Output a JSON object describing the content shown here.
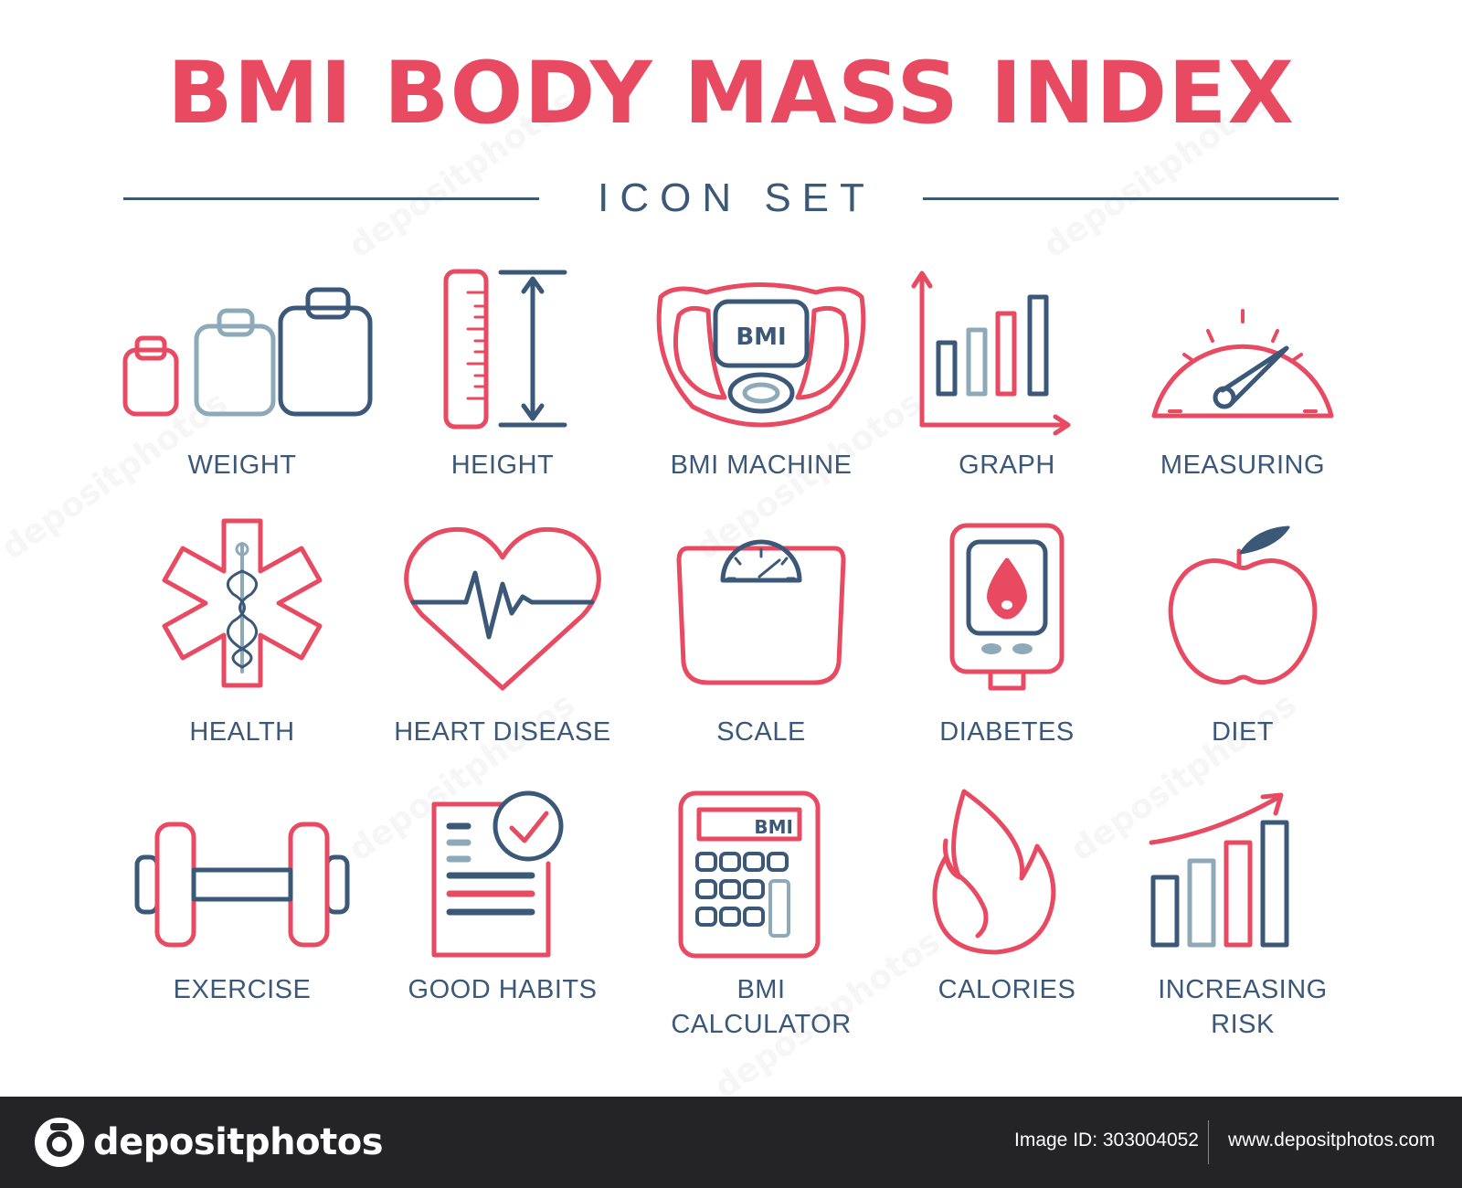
{
  "header": {
    "title": "BMI BODY MASS INDEX",
    "subtitle": "ICON SET"
  },
  "colors": {
    "accent_red": "#e84a62",
    "navy": "#3b5878",
    "light_blue": "#8eaab8",
    "footer_bg": "#242426"
  },
  "icons": [
    {
      "label": "WEIGHT",
      "icon": "weights-icon"
    },
    {
      "label": "HEIGHT",
      "icon": "ruler-icon"
    },
    {
      "label": "BMI MACHINE",
      "icon": "bmi-machine-icon",
      "screen_text": "BMI"
    },
    {
      "label": "GRAPH",
      "icon": "bar-graph-icon"
    },
    {
      "label": "MEASURING",
      "icon": "gauge-icon"
    },
    {
      "label": "HEALTH",
      "icon": "star-of-life-icon"
    },
    {
      "label": "HEART DISEASE",
      "icon": "heartbeat-icon"
    },
    {
      "label": "SCALE",
      "icon": "scale-icon"
    },
    {
      "label": "DIABETES",
      "icon": "glucose-meter-icon"
    },
    {
      "label": "DIET",
      "icon": "apple-icon"
    },
    {
      "label": "EXERCISE",
      "icon": "dumbbell-icon"
    },
    {
      "label": "GOOD HABITS",
      "icon": "checklist-icon"
    },
    {
      "label": "BMI",
      "label_line2": "CALCULATOR",
      "icon": "calculator-icon",
      "screen_text": "BMI"
    },
    {
      "label": "CALORIES",
      "icon": "flame-icon"
    },
    {
      "label": "INCREASING",
      "label_line2": "RISK",
      "icon": "rising-bars-icon"
    }
  ],
  "footer": {
    "brand": "depositphotos",
    "image_id": "Image ID: 303004052",
    "site": "www.depositphotos.com"
  },
  "watermark": "depositphotos"
}
